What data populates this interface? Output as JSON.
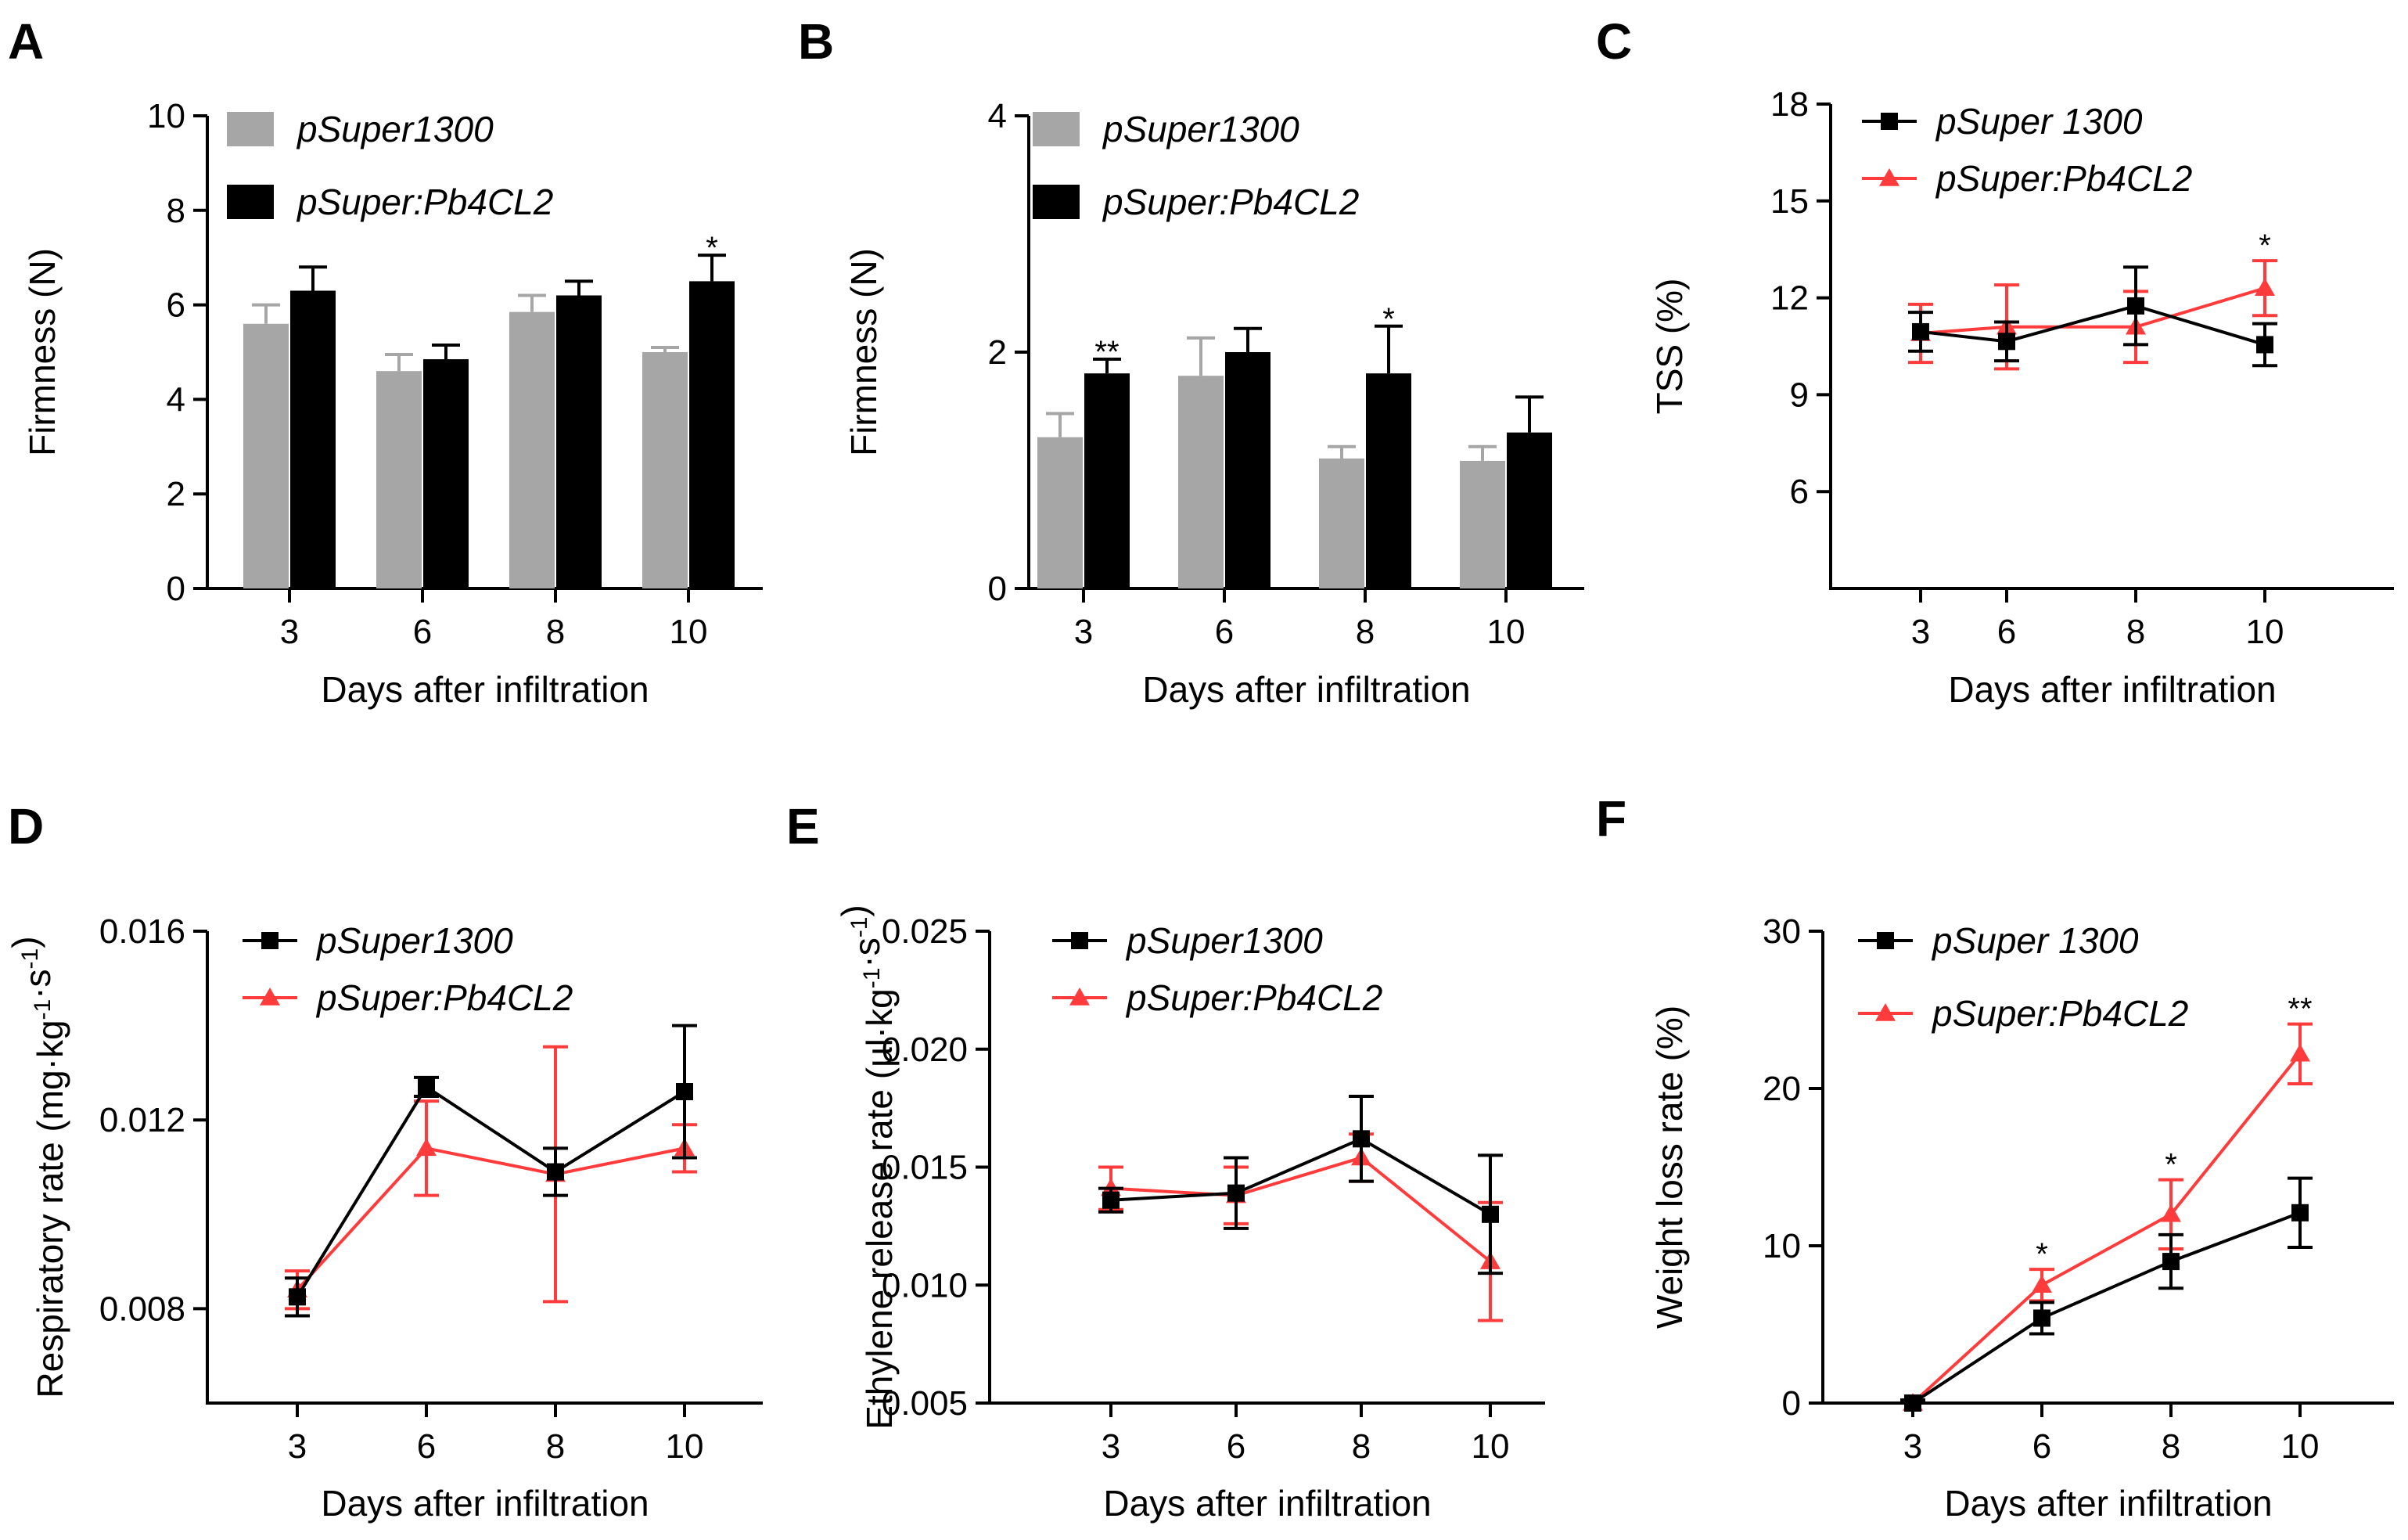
{
  "chart_data": [
    {
      "panel": "A",
      "type": "bar",
      "categories": [
        "3",
        "6",
        "8",
        "10"
      ],
      "xlabel": "Days after infiltration",
      "ylabel": "Firmness (N)",
      "ylim": [
        0,
        10
      ],
      "yticks": [
        "0",
        "2",
        "4",
        "6",
        "8",
        "10"
      ],
      "legend_position": "top-left",
      "series": [
        {
          "name": "pSuper1300",
          "color": "#a6a6a6",
          "values": [
            5.6,
            4.6,
            5.85,
            5.0
          ],
          "errors": [
            0.4,
            0.35,
            0.35,
            0.1
          ]
        },
        {
          "name": "pSuper:Pb4CL2",
          "color": "#000000",
          "values": [
            6.3,
            4.85,
            6.2,
            6.5
          ],
          "errors": [
            0.5,
            0.3,
            0.3,
            0.55
          ]
        }
      ],
      "annotations": [
        {
          "category": "10",
          "series": 1,
          "text": "*"
        }
      ]
    },
    {
      "panel": "B",
      "type": "bar",
      "categories": [
        "3",
        "6",
        "8",
        "10"
      ],
      "xlabel": "Days after infiltration",
      "ylabel": "Firmness (N)",
      "ylim": [
        0,
        4
      ],
      "yticks": [
        "0",
        "2",
        "4"
      ],
      "legend_position": "top-left",
      "series": [
        {
          "name": "pSuper1300",
          "color": "#a6a6a6",
          "values": [
            1.28,
            1.8,
            1.1,
            1.08
          ],
          "errors": [
            0.2,
            0.32,
            0.1,
            0.12
          ]
        },
        {
          "name": "pSuper:Pb4CL2",
          "color": "#000000",
          "values": [
            1.82,
            2.0,
            1.82,
            1.32
          ],
          "errors": [
            0.12,
            0.2,
            0.4,
            0.3
          ]
        }
      ],
      "annotations": [
        {
          "category": "3",
          "series": 1,
          "text": "**"
        },
        {
          "category": "8",
          "series": 1,
          "text": "*"
        }
      ]
    },
    {
      "panel": "C",
      "type": "line",
      "x": [
        "3",
        "6",
        "8",
        "10"
      ],
      "xlabel": "Days after infiltration",
      "ylabel": "TSS (%)",
      "ylim": [
        3,
        18
      ],
      "yticks": [
        "6",
        "9",
        "12",
        "15",
        "18"
      ],
      "legend_position": "top-left",
      "series": [
        {
          "name": "pSuper 1300",
          "color": "#000000",
          "marker": "square",
          "values": [
            10.95,
            10.65,
            11.75,
            10.55
          ],
          "errors": [
            0.6,
            0.6,
            1.2,
            0.65
          ]
        },
        {
          "name": "pSuper:Pb4CL2",
          "color": "#ff3b3b",
          "marker": "triangle",
          "values": [
            10.9,
            11.1,
            11.1,
            12.3
          ],
          "errors": [
            0.9,
            1.3,
            1.1,
            0.85
          ]
        }
      ],
      "annotations": [
        {
          "x": "10",
          "text": "*"
        }
      ]
    },
    {
      "panel": "D",
      "type": "line",
      "x": [
        "3",
        "6",
        "8",
        "10"
      ],
      "xlabel": "Days after infiltration",
      "ylabel": "Respiratory rate (mg·kg-1·s-1)",
      "ylim": [
        0.006,
        0.016
      ],
      "yticks": [
        "0.008",
        "0.012",
        "0.016"
      ],
      "legend_position": "top-left",
      "series": [
        {
          "name": "pSuper1300",
          "color": "#000000",
          "marker": "square",
          "values": [
            0.00825,
            0.0127,
            0.0109,
            0.0126
          ],
          "errors": [
            0.0004,
            0.0002,
            0.0005,
            0.0014
          ]
        },
        {
          "name": "pSuper:Pb4CL2",
          "color": "#ff3b3b",
          "marker": "triangle",
          "values": [
            0.0084,
            0.0114,
            0.01085,
            0.0114
          ],
          "errors": [
            0.0004,
            0.001,
            0.0027,
            0.0005
          ]
        }
      ]
    },
    {
      "panel": "E",
      "type": "line",
      "x": [
        "3",
        "6",
        "8",
        "10"
      ],
      "xlabel": "Days after infiltration",
      "ylabel": "Ethylene release rate (µl·kg-1·s-1)",
      "ylim": [
        0.005,
        0.025
      ],
      "yticks": [
        "0.005",
        "0.010",
        "0.015",
        "0.020",
        "0.025"
      ],
      "legend_position": "top-left",
      "series": [
        {
          "name": "pSuper1300",
          "color": "#000000",
          "marker": "square",
          "values": [
            0.0136,
            0.0139,
            0.0162,
            0.013
          ],
          "errors": [
            0.0005,
            0.0015,
            0.0018,
            0.0025
          ]
        },
        {
          "name": "pSuper:Pb4CL2",
          "color": "#ff3b3b",
          "marker": "triangle",
          "values": [
            0.0141,
            0.0138,
            0.0154,
            0.011
          ],
          "errors": [
            0.0009,
            0.0012,
            0.001,
            0.0025
          ]
        }
      ]
    },
    {
      "panel": "F",
      "type": "line",
      "x": [
        "3",
        "6",
        "8",
        "10"
      ],
      "xlabel": "Days after infiltration",
      "ylabel": "Weight loss rate (%)",
      "ylim": [
        0,
        30
      ],
      "yticks": [
        "0",
        "10",
        "20",
        "30"
      ],
      "legend_position": "top-left",
      "series": [
        {
          "name": "pSuper 1300",
          "color": "#000000",
          "marker": "square",
          "values": [
            0,
            5.4,
            9.0,
            12.1
          ],
          "errors": [
            0.2,
            1.0,
            1.7,
            2.2
          ]
        },
        {
          "name": "pSuper:Pb4CL2",
          "color": "#ff3b3b",
          "marker": "triangle",
          "values": [
            0,
            7.5,
            12.0,
            22.2
          ],
          "errors": [
            0.2,
            1.0,
            2.2,
            1.9
          ]
        }
      ],
      "annotations": [
        {
          "x": "6",
          "text": "*"
        },
        {
          "x": "8",
          "text": "*"
        },
        {
          "x": "10",
          "text": "**"
        }
      ]
    }
  ]
}
